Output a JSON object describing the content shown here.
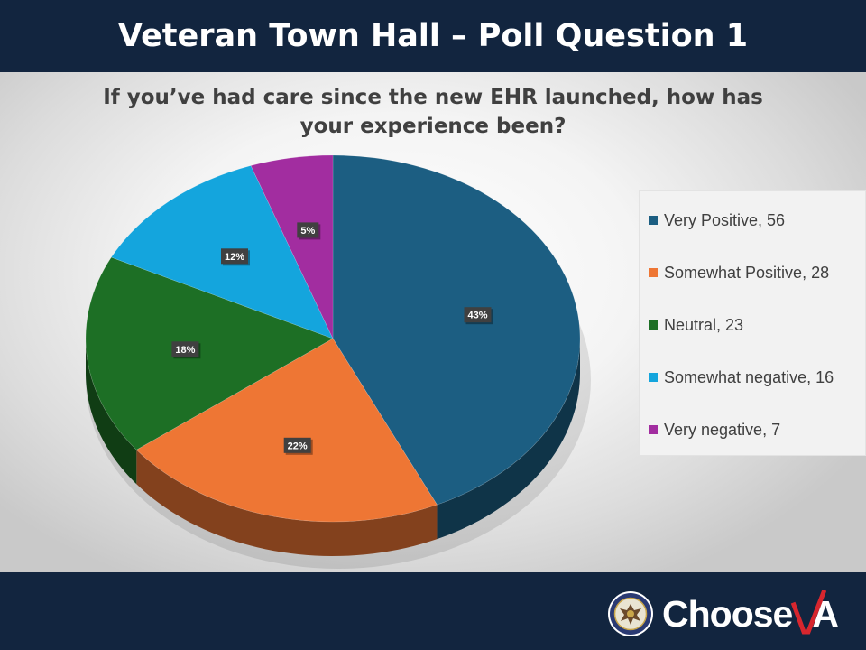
{
  "header": {
    "title": "Veteran Town Hall – Poll Question 1"
  },
  "chart_data": {
    "type": "pie",
    "title": "If you’ve had care since the new EHR launched, how has your experience been?",
    "title_lines": [
      "If you’ve had care since the new EHR launched, how has",
      "your experience been?"
    ],
    "legend_position": "right",
    "slices": [
      {
        "label": "Very Positive",
        "value": 56,
        "percent_label": "43%",
        "legend": "Very Positive, 56",
        "color": "#1c5e82"
      },
      {
        "label": "Somewhat Positive",
        "value": 28,
        "percent_label": "22%",
        "legend": "Somewhat Positive, 28",
        "color": "#ee7634"
      },
      {
        "label": "Neutral",
        "value": 23,
        "percent_label": "18%",
        "legend": "Neutral, 23",
        "color": "#1d6f25"
      },
      {
        "label": "Somewhat negative",
        "value": 16,
        "percent_label": "12%",
        "legend": "Somewhat negative, 16",
        "color": "#14a5dd"
      },
      {
        "label": "Very negative",
        "value": 7,
        "percent_label": "5%",
        "legend": "Very negative, 7",
        "color": "#a22da0"
      }
    ]
  },
  "footer": {
    "brand_prefix": "Choose",
    "brand_suffix": "A",
    "brand_accent_color": "#d7262e",
    "seal_icon": "va-seal-icon"
  }
}
